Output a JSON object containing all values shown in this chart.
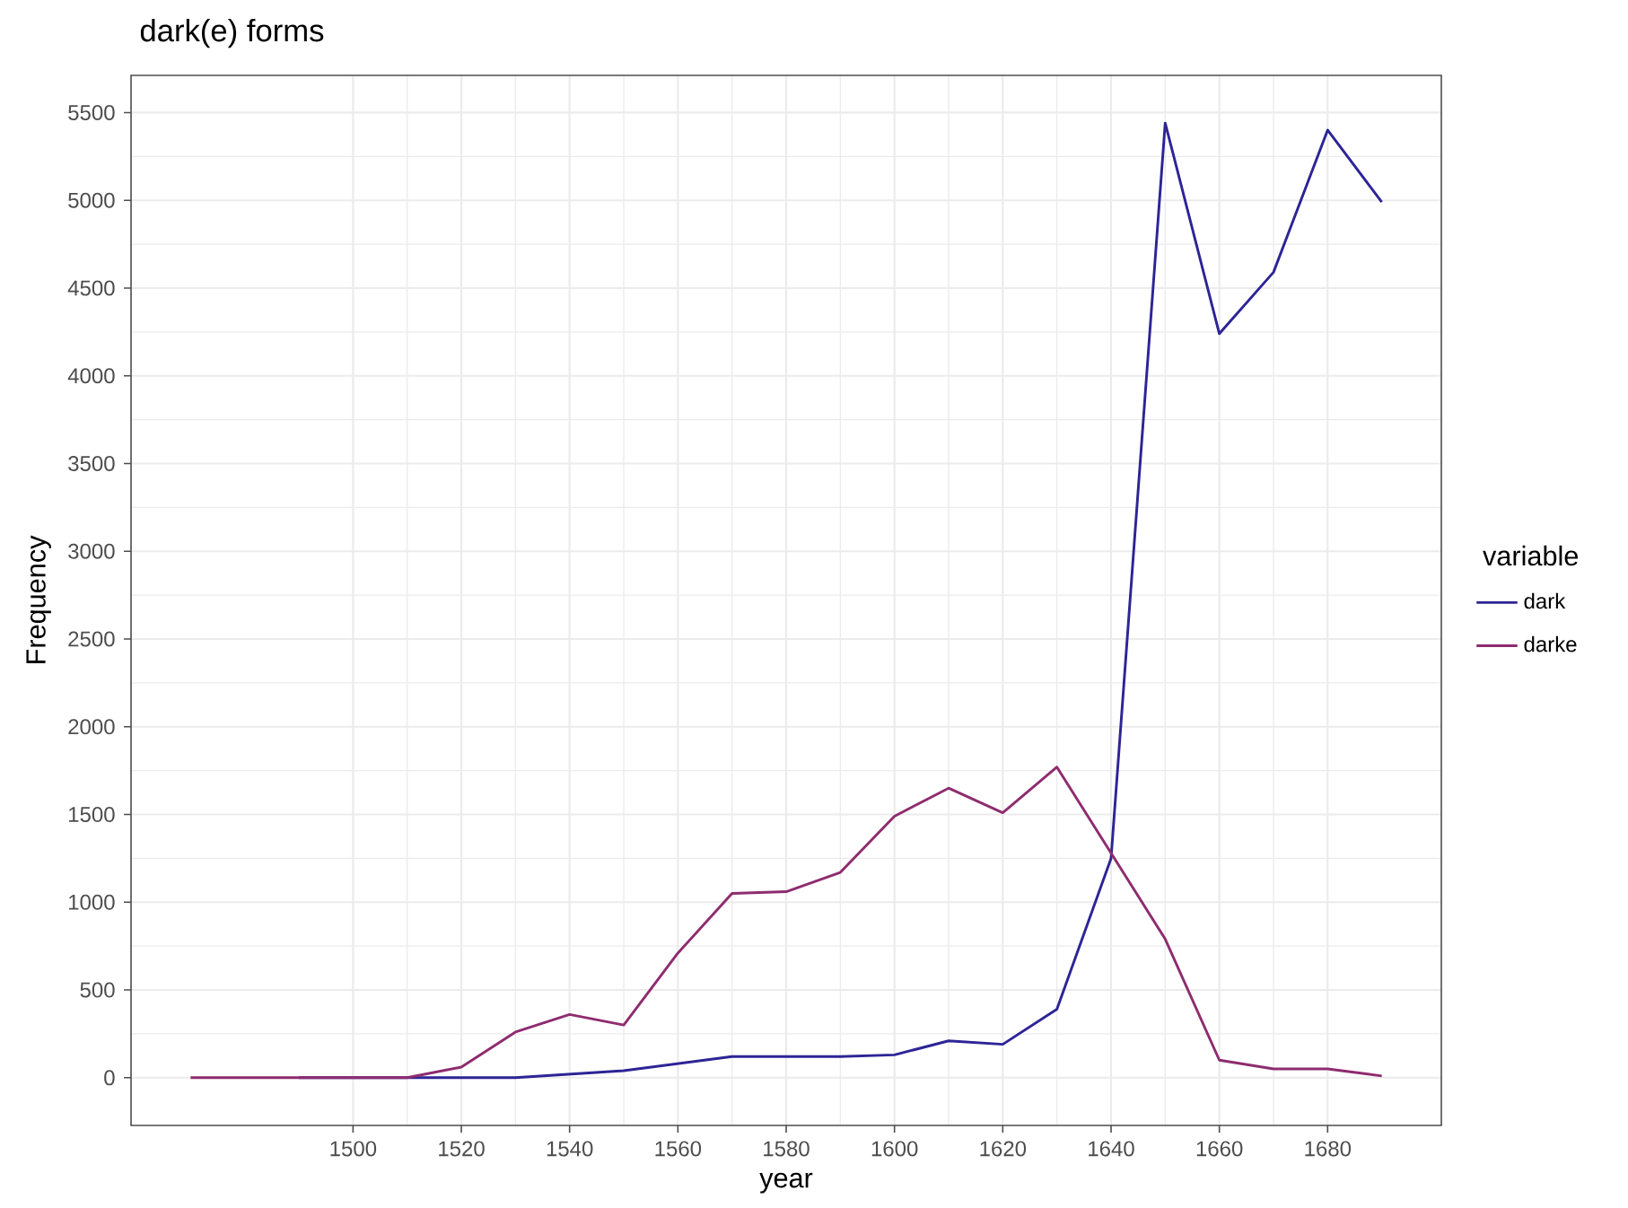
{
  "chart_data": {
    "type": "line",
    "title": "dark(e) forms",
    "xlabel": "year",
    "ylabel": "Frequency",
    "legend_title": "variable",
    "x": [
      1470,
      1480,
      1490,
      1500,
      1510,
      1520,
      1530,
      1540,
      1550,
      1560,
      1570,
      1580,
      1590,
      1600,
      1610,
      1620,
      1630,
      1640,
      1650,
      1660,
      1670,
      1680,
      1690
    ],
    "series": [
      {
        "name": "dark",
        "color": "#2d2496",
        "values": [
          null,
          null,
          0,
          0,
          0,
          0,
          0,
          20,
          40,
          80,
          120,
          120,
          120,
          130,
          210,
          190,
          390,
          1250,
          5440,
          4240,
          4590,
          5400,
          4990
        ]
      },
      {
        "name": "darke",
        "color": "#8e2c6f",
        "values": [
          0,
          0,
          0,
          0,
          0,
          60,
          260,
          360,
          300,
          710,
          1050,
          1060,
          1170,
          1490,
          1650,
          1510,
          1770,
          1280,
          790,
          100,
          50,
          50,
          10
        ]
      }
    ],
    "xlim": [
      1459,
      1701
    ],
    "ylim": [
      -272,
      5712
    ],
    "xticks": [
      1500,
      1520,
      1540,
      1560,
      1580,
      1600,
      1620,
      1640,
      1660,
      1680
    ],
    "yticks": [
      0,
      500,
      1000,
      1500,
      2000,
      2500,
      3000,
      3500,
      4000,
      4500,
      5000,
      5500
    ],
    "grid": true,
    "legend": "right",
    "marker": "none",
    "line_style": "solid"
  }
}
